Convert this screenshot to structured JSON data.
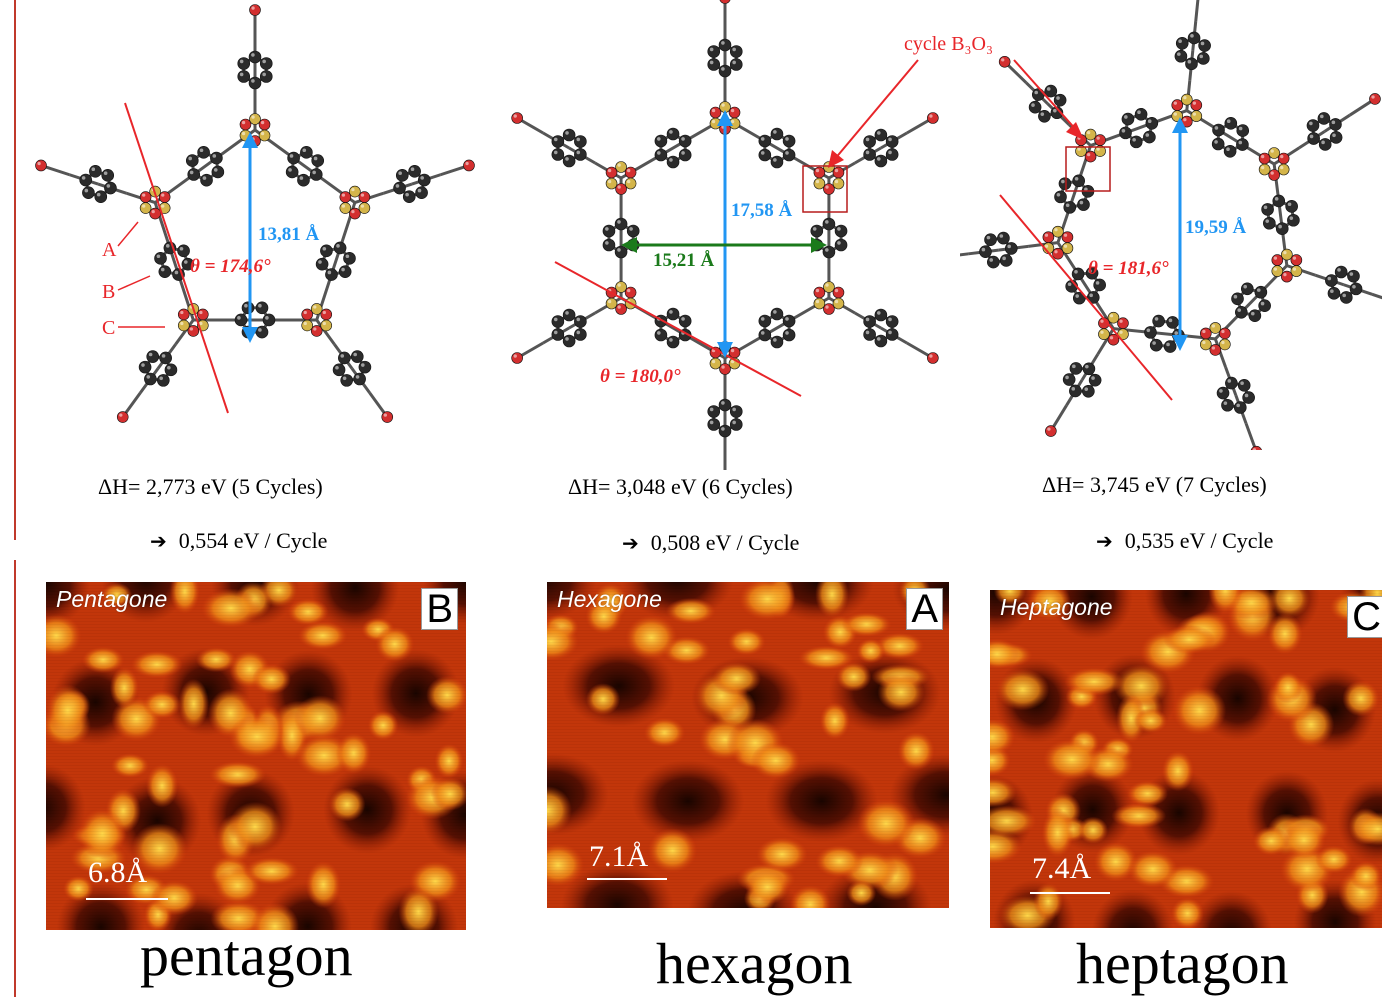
{
  "panels": [
    {
      "id": "pentagon",
      "distance_label": "13,81 Å",
      "angle_label": "θ = 174,6°",
      "atom_labels": [
        "A",
        "B",
        "C"
      ],
      "enthalpy": "ΔH= 2,773 eV  (5 Cycles)",
      "per_cycle": "0,554 eV / Cycle",
      "stm_title": "Pentagone",
      "stm_letter": "B",
      "scale": "6.8Å",
      "name": "pentagon"
    },
    {
      "id": "hexagon",
      "distance_label": "17,58 Å",
      "distance2_label": "15,21 Å",
      "angle_label": "θ = 180,0°",
      "enthalpy": "ΔH= 3,048 eV  (6 Cycles)",
      "per_cycle": "0,508 eV / Cycle",
      "stm_title": "Hexagone",
      "stm_letter": "A",
      "scale": "7.1Å",
      "name": "hexagon"
    },
    {
      "id": "heptagon",
      "distance_label": "19,59 Å",
      "angle_label": "θ = 181,6°",
      "enthalpy": "ΔH= 3,745 eV  (7 Cycles)",
      "per_cycle": "0,535 eV / Cycle",
      "stm_title": "Heptagone",
      "stm_letter": "C",
      "scale": "7.4Å",
      "name": "heptagon"
    }
  ],
  "cycle_annotation": "cycle B₃O₃",
  "arrow_glyph": "➔",
  "colors": {
    "annotation_red": "#e8262a",
    "distance_blue": "#2196f3",
    "distance_green": "#1b7a1b",
    "carbon": "#2b2b2b",
    "oxygen": "#d32f2f",
    "boron": "#d4b54a",
    "stm_dark": "#1a0500",
    "stm_mid": "#d8400a",
    "stm_bright": "#ffd84a"
  }
}
